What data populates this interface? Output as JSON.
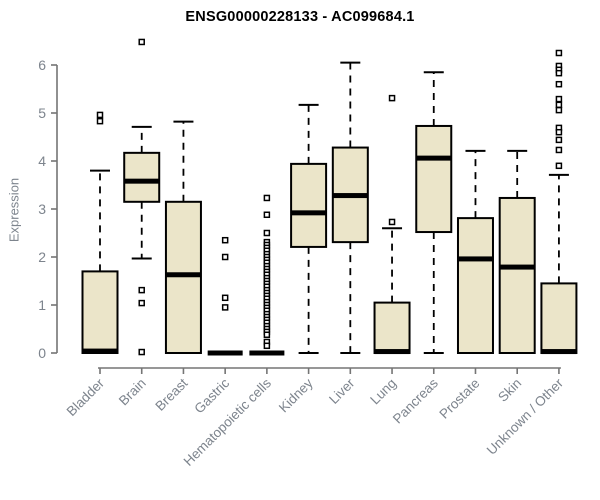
{
  "page": {
    "background": "#ffffff"
  },
  "chart_data": {
    "type": "boxplot",
    "title": "ENSG00000228133 - AC099684.1",
    "xlabel": "",
    "ylabel": "Expression",
    "ylim": [
      0,
      6.6
    ],
    "yticks": [
      0,
      1,
      2,
      3,
      4,
      5,
      6
    ],
    "grid": false,
    "legend": null,
    "colors": {
      "box_fill": "#EBE5C9",
      "box_border": "#000000",
      "whisker": "#000000",
      "axis_line": "#757575",
      "tick_label": "#7d848d",
      "title": "#000000",
      "outlier_fill": "#ffffff"
    },
    "categories": [
      "Bladder",
      "Brain",
      "Breast",
      "Gastric",
      "Hematopoietic cells",
      "Kidney",
      "Liver",
      "Lung",
      "Pancreas",
      "Prostate",
      "Skin",
      "Unknown / Other"
    ],
    "series": [
      {
        "category": "Bladder",
        "whislo": 0,
        "q1": 0,
        "med": 0.04,
        "q3": 1.7,
        "whishi": 3.8,
        "outliers": [
          4.96,
          4.83
        ]
      },
      {
        "category": "Brain",
        "whislo": 1.97,
        "q1": 3.15,
        "med": 3.58,
        "q3": 4.17,
        "whishi": 4.71,
        "outliers": [
          6.48,
          1.31,
          1.04,
          0.02
        ]
      },
      {
        "category": "Breast",
        "whislo": 0,
        "q1": 0,
        "med": 1.63,
        "q3": 3.15,
        "whishi": 4.82,
        "outliers": []
      },
      {
        "category": "Gastric",
        "whislo": 0,
        "q1": 0,
        "med": 0,
        "q3": 0,
        "whishi": 0,
        "outliers": [
          2.35,
          2.0,
          1.15,
          0.95
        ]
      },
      {
        "category": "Hematopoietic cells",
        "whislo": 0,
        "q1": 0,
        "med": 0,
        "q3": 0,
        "whishi": 0,
        "outliers": [
          3.23,
          2.88,
          2.5,
          2.31,
          2.25,
          2.19,
          2.13,
          2.06,
          2.0,
          1.94,
          1.88,
          1.81,
          1.75,
          1.69,
          1.63,
          1.56,
          1.5,
          1.44,
          1.38,
          1.31,
          1.25,
          1.19,
          1.13,
          1.06,
          1.0,
          0.94,
          0.88,
          0.81,
          0.75,
          0.69,
          0.63,
          0.56,
          0.5,
          0.44,
          0.38,
          0.23,
          0.15
        ]
      },
      {
        "category": "Kidney",
        "whislo": 0,
        "q1": 2.21,
        "med": 2.92,
        "q3": 3.94,
        "whishi": 5.17,
        "outliers": []
      },
      {
        "category": "Liver",
        "whislo": 0,
        "q1": 2.31,
        "med": 3.28,
        "q3": 4.28,
        "whishi": 6.05,
        "outliers": []
      },
      {
        "category": "Lung",
        "whislo": 0,
        "q1": 0,
        "med": 0.03,
        "q3": 1.05,
        "whishi": 2.6,
        "outliers": [
          5.31,
          2.73
        ]
      },
      {
        "category": "Pancreas",
        "whislo": 0,
        "q1": 2.52,
        "med": 4.06,
        "q3": 4.73,
        "whishi": 5.85,
        "outliers": []
      },
      {
        "category": "Prostate",
        "whislo": 0,
        "q1": 0,
        "med": 1.96,
        "q3": 2.81,
        "whishi": 4.21,
        "outliers": []
      },
      {
        "category": "Skin",
        "whislo": 0,
        "q1": 0,
        "med": 1.79,
        "q3": 3.23,
        "whishi": 4.21,
        "outliers": []
      },
      {
        "category": "Unknown / Other",
        "whislo": 0,
        "q1": 0,
        "med": 0.03,
        "q3": 1.45,
        "whishi": 3.71,
        "outliers": [
          6.25,
          5.98,
          5.9,
          5.83,
          5.6,
          5.29,
          5.17,
          5.06,
          4.69,
          4.6,
          4.44,
          4.23,
          3.9
        ]
      }
    ]
  }
}
